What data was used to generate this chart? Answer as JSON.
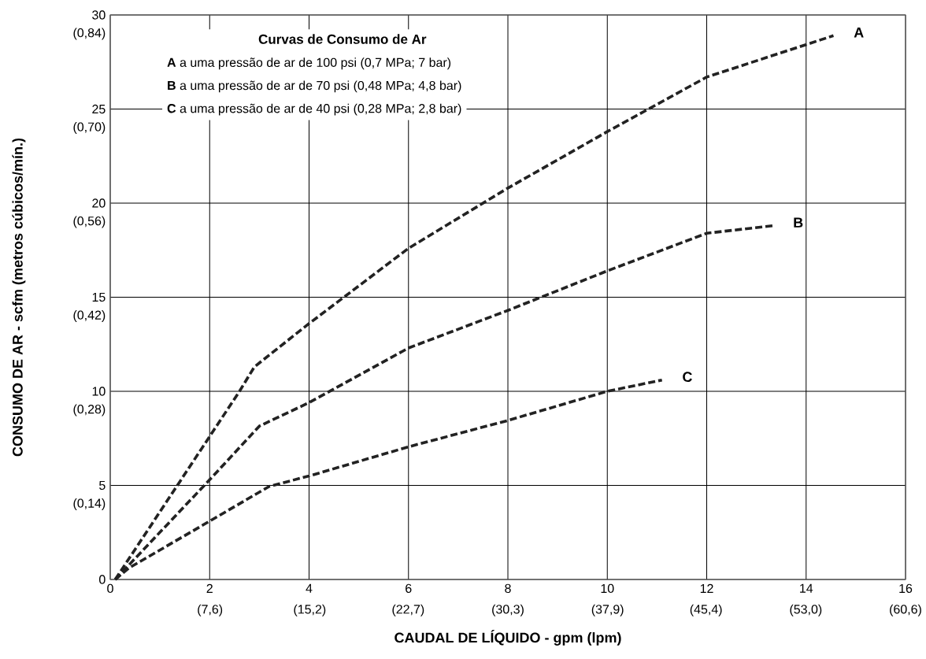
{
  "chart_data": {
    "type": "line",
    "xlabel": "CAUDAL DE LÍQUIDO - gpm (lpm)",
    "y2label": "CONSUMO DE AR - scfm (metros cúbicos/mín.)",
    "annotations": [
      "**Curvas de Consumo de Ar**",
      "**A** a uma pressão de ar de 100 psi (0,7 MPa; 7 bar)",
      "**B** a uma pressão de ar de 70 psi (0,48 MPa; 4,8 bar)",
      "**C** a uma pressão de ar de 40 psi (0,28 MPa; 2,8 bar)"
    ],
    "series": [
      {
        "name": "A",
        "color": "#222222",
        "x": [
          0.1,
          2.6,
          2.9,
          4,
          6,
          8,
          10,
          12,
          14.55
        ],
        "values": [
          0,
          10,
          11.3,
          13.6,
          17.6,
          20.8,
          23.8,
          26.7,
          28.9
        ]
      },
      {
        "name": "B",
        "color": "#222222",
        "x": [
          0.1,
          2,
          3,
          4,
          6,
          8,
          10,
          12,
          13.33
        ],
        "values": [
          0,
          5.3,
          8.15,
          9.4,
          12.3,
          14.3,
          16.4,
          18.4,
          18.8
        ]
      },
      {
        "name": "C",
        "color": "#222222",
        "x": [
          0.1,
          0.37,
          2,
          3.2,
          4,
          6,
          8,
          10,
          11.1
        ],
        "values": [
          0,
          0.6,
          3.1,
          4.95,
          5.5,
          7.05,
          8.45,
          10,
          10.6
        ]
      }
    ],
    "xlim": [
      0,
      16
    ],
    "ylim": [
      0,
      30
    ],
    "xticks": [
      0,
      2,
      4,
      6,
      8,
      10,
      12,
      14,
      16
    ],
    "yticks": [
      0,
      5,
      10,
      15,
      20,
      25,
      30
    ],
    "x2lim": [
      0,
      60.6
    ],
    "x2ticks": [
      {
        "value": 7.6,
        "label": "(7,6)"
      },
      {
        "value": 15.2,
        "label": "(15,2)"
      },
      {
        "value": 22.7,
        "label": "(22,7)"
      },
      {
        "value": 30.3,
        "label": "(30,3)"
      },
      {
        "value": 37.9,
        "label": "(37,9)"
      },
      {
        "value": 45.4,
        "label": "(45,4)"
      },
      {
        "value": 53.0,
        "label": "(53,0)"
      },
      {
        "value": 60.6,
        "label": "(60,6)"
      }
    ],
    "y2lim": [
      0.0281,
      0.8681
    ],
    "y2ticks": [
      {
        "value": 0.14,
        "label": "(0,14)"
      },
      {
        "value": 0.28,
        "label": "(0,28)"
      },
      {
        "value": 0.42,
        "label": "(0,42)"
      },
      {
        "value": 0.56,
        "label": "(0,56)"
      },
      {
        "value": 0.7,
        "label": "(0,70)"
      },
      {
        "value": 0.84,
        "label": "(0,84)"
      }
    ],
    "grid": true,
    "marker": "none",
    "line_style": "dashed"
  }
}
